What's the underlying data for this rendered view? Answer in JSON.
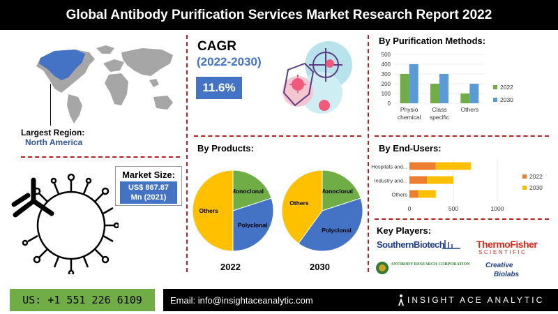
{
  "title": "Global Antibody Purification Services Market Research Report 2022",
  "region": {
    "label": "Largest Region:",
    "value": "North America"
  },
  "cagr": {
    "title": "CAGR",
    "years": "(2022-2030)",
    "value": "11.6%"
  },
  "market_size": {
    "label": "Market Size:",
    "value_line1": "US$ 867.87",
    "value_line2": "Mn (2021)"
  },
  "methods": {
    "title": "By Purification Methods:"
  },
  "products": {
    "title": "By Products:",
    "year1": "2022",
    "year2": "2030"
  },
  "end_users": {
    "title": "By End-Users:"
  },
  "key_players": {
    "title": "Key Players:",
    "list": [
      "SouthernBiotech",
      "ThermoFisher",
      "SCIENTIFIC",
      "ANTIBODY RESEARCH CORPORATION",
      "Creative",
      "Biolabs"
    ]
  },
  "footer": {
    "phone": "US: +1 551 226 6109",
    "email": "Email: info@insightaceanalytic.com",
    "brand": "INSIGHT ACE ANALYTIC"
  },
  "colors": {
    "blue": "#4472c4",
    "green": "#70ad47",
    "orange": "#ed7d31",
    "yellow": "#ffc000",
    "divider": "#b22222"
  },
  "icons": [
    "world-map",
    "virus-shield-icon",
    "antibody-icon",
    "insight-ace-logo"
  ],
  "chart_data": [
    {
      "type": "bar",
      "title": "By Purification Methods:",
      "categories": [
        "Physio chemical",
        "Class specific",
        "Others"
      ],
      "category_lines": [
        [
          "Physio",
          "chemical"
        ],
        [
          "Class",
          "specific"
        ],
        [
          "Others"
        ]
      ],
      "series": [
        {
          "name": "2022",
          "values": [
            300,
            200,
            100
          ],
          "color": "#70ad47"
        },
        {
          "name": "2030",
          "values": [
            400,
            300,
            200
          ],
          "color": "#5b9bd5"
        }
      ],
      "ylim": [
        0,
        500
      ],
      "yticks": [
        0,
        100,
        200,
        300,
        400,
        500
      ],
      "grid": true,
      "legend": "right"
    },
    {
      "type": "pie",
      "title": "2022",
      "slices": [
        {
          "label": "Monoclonal",
          "value": 20,
          "color": "#70ad47"
        },
        {
          "label": "Polyclonal",
          "value": 30,
          "color": "#4472c4"
        },
        {
          "label": "Others",
          "value": 50,
          "color": "#ffc000"
        }
      ]
    },
    {
      "type": "pie",
      "title": "2030",
      "slices": [
        {
          "label": "Monoclonal",
          "value": 20,
          "color": "#70ad47"
        },
        {
          "label": "Polyclonal",
          "value": 40,
          "color": "#4472c4"
        },
        {
          "label": "Others",
          "value": 40,
          "color": "#ffc000"
        }
      ]
    },
    {
      "type": "bar",
      "orientation": "horizontal",
      "stacked": true,
      "title": "By End-Users:",
      "categories": [
        "Hospitals and...",
        "Industry and...",
        "Others"
      ],
      "series": [
        {
          "name": "2022",
          "values": [
            300,
            200,
            100
          ],
          "color": "#ed7d31"
        },
        {
          "name": "2030",
          "values": [
            400,
            300,
            200
          ],
          "color": "#ffc000"
        }
      ],
      "xlim": [
        0,
        1000
      ],
      "xticks": [
        0,
        500,
        1000
      ],
      "grid": true,
      "legend": "right"
    }
  ]
}
